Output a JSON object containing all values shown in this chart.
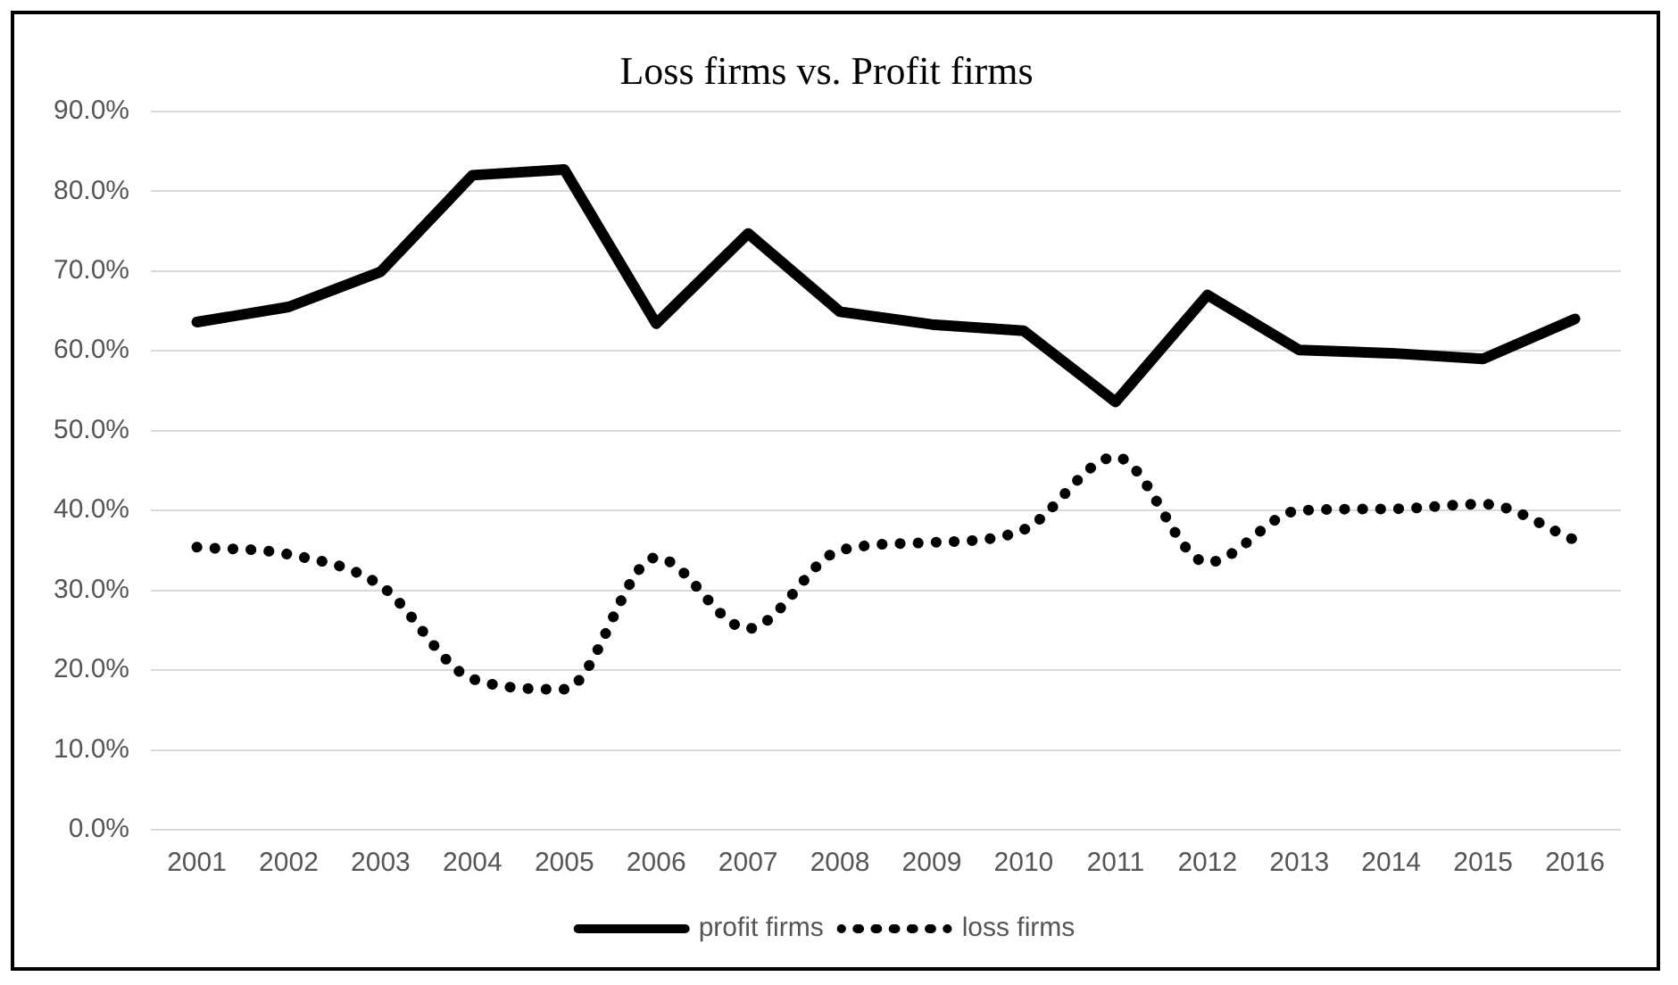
{
  "chart_data": {
    "type": "line",
    "title": "Loss firms vs. Profit firms",
    "categories": [
      "2001",
      "2002",
      "2003",
      "2004",
      "2005",
      "2006",
      "2007",
      "2008",
      "2009",
      "2010",
      "2011",
      "2012",
      "2013",
      "2014",
      "2015",
      "2016"
    ],
    "series": [
      {
        "name": "profit firms",
        "color": "#000000",
        "line_style": "solid",
        "values": [
          63.6,
          65.5,
          69.9,
          82.0,
          82.7,
          63.4,
          74.7,
          64.9,
          63.3,
          62.5,
          53.6,
          67.0,
          60.1,
          59.7,
          59.0,
          64.0
        ]
      },
      {
        "name": "loss firms",
        "color": "#000000",
        "line_style": "dotted",
        "values": [
          35.4,
          34.5,
          30.6,
          18.9,
          17.6,
          34.1,
          25.2,
          35.0,
          36.0,
          37.6,
          46.7,
          33.5,
          40.0,
          40.2,
          40.8,
          36.3
        ]
      }
    ],
    "ylim": [
      0,
      90
    ],
    "yticks": [
      {
        "value": 0,
        "label": "0.0%"
      },
      {
        "value": 10,
        "label": "10.0%"
      },
      {
        "value": 20,
        "label": "20.0%"
      },
      {
        "value": 30,
        "label": "30.0%"
      },
      {
        "value": 40,
        "label": "40.0%"
      },
      {
        "value": 50,
        "label": "50.0%"
      },
      {
        "value": 60,
        "label": "60.0%"
      },
      {
        "value": 70,
        "label": "70.0%"
      },
      {
        "value": 80,
        "label": "80.0%"
      },
      {
        "value": 90,
        "label": "90.0%"
      }
    ],
    "grid": "y",
    "legend": "bottom",
    "marker": "none"
  }
}
